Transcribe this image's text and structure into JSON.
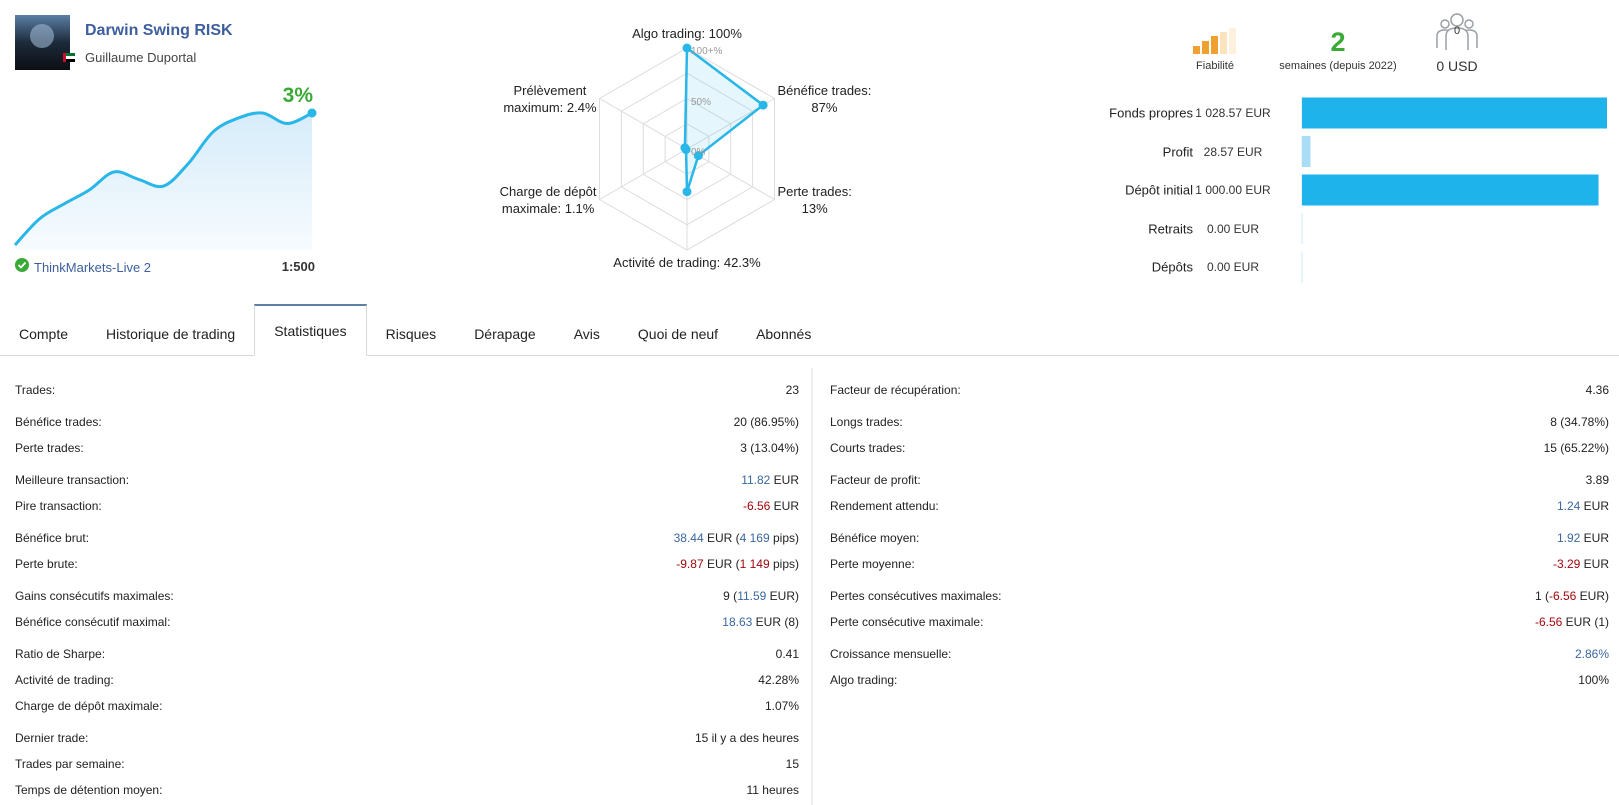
{
  "header": {
    "name": "Darwin Swing RISK",
    "author": "Guillaume Duportal"
  },
  "growth": {
    "label": "3%",
    "color": "#29b6e8",
    "label_color": "#3aa935",
    "values": [
      0,
      0.6,
      0.94,
      1.25,
      1.66,
      1.49,
      1.34,
      1.85,
      2.57,
      2.88,
      3,
      2.76,
      3
    ]
  },
  "broker": "ThinkMarkets-Live 2",
  "leverage": "1:500",
  "radar": {
    "type": "radar",
    "color": "#29b6e8",
    "rlim": [
      0,
      100
    ],
    "grid": [
      25,
      50,
      75,
      100
    ],
    "ticks": [
      {
        "value": 100,
        "label": "100+%"
      },
      {
        "value": 50,
        "label": "50%"
      },
      {
        "value": 0,
        "label": "0%"
      }
    ],
    "axes": [
      {
        "label": [
          "Algo trading: 100%"
        ],
        "value": 100
      },
      {
        "label": [
          "Bénéfice trades:",
          "87%"
        ],
        "value": 87
      },
      {
        "label": [
          "Perte trades:",
          "13%"
        ],
        "value": 13
      },
      {
        "label": [
          "Activité de trading: 42.3%"
        ],
        "value": 42.3
      },
      {
        "label": [
          "Charge de dépôt",
          "maximale: 1.1%"
        ],
        "value": 1.1
      },
      {
        "label": [
          "Prélèvement",
          "maximum: 2.4%"
        ],
        "value": 2.4
      }
    ]
  },
  "summary": {
    "reliability": "Fiabilité",
    "weeks": "2",
    "weeks_label": "semaines (depuis 2022)",
    "subscribers": "0",
    "subscription": "0 USD"
  },
  "balance": {
    "type": "bar",
    "color": "#1eb3eb",
    "rows": [
      {
        "label": "Fonds propres",
        "value": 1028.57,
        "value_label": "1 028.57 EUR"
      },
      {
        "label": "Profit",
        "value": 28.57,
        "value_label": "28.57 EUR",
        "color": "#a9dcf5"
      },
      {
        "label": "Dépôt initial",
        "value": 1000,
        "value_label": "1 000.00 EUR"
      },
      {
        "label": "Retraits",
        "value": 0,
        "value_label": "0.00 EUR"
      },
      {
        "label": "Dépôts",
        "value": 0,
        "value_label": "0.00 EUR"
      }
    ]
  },
  "tabs": {
    "items": [
      "Compte",
      "Historique de trading",
      "Statistiques",
      "Risques",
      "Dérapage",
      "Avis",
      "Quoi de neuf",
      "Abonnés"
    ],
    "active": 2
  },
  "stats": {
    "colors": {
      "positive": "#3a67a3",
      "negative": "#a0070b"
    },
    "columns": [
      [
        [
          {
            "label": "Trades:",
            "value": [
              "23"
            ]
          }
        ],
        [
          {
            "label": "Bénéfice trades:",
            "value": [
              "20 (86.95%)"
            ]
          },
          {
            "label": "Perte trades:",
            "value": [
              "3 (13.04%)"
            ]
          }
        ],
        [
          {
            "label": "Meilleure transaction:",
            "value": [
              {
                "text": "11.82",
                "tone": "positive"
              },
              " EUR"
            ]
          },
          {
            "label": "Pire transaction:",
            "value": [
              {
                "text": "-6.56",
                "tone": "negative"
              },
              " EUR"
            ]
          }
        ],
        [
          {
            "label": "Bénéfice brut:",
            "value": [
              {
                "text": "38.44",
                "tone": "positive"
              },
              " EUR (",
              {
                "text": "4 169",
                "tone": "positive"
              },
              " pips)"
            ]
          },
          {
            "label": "Perte brute:",
            "value": [
              {
                "text": "-9.87",
                "tone": "negative"
              },
              " EUR (",
              {
                "text": "1 149",
                "tone": "negative"
              },
              " pips)"
            ]
          }
        ],
        [
          {
            "label": "Gains consécutifs maximales:",
            "value": [
              "9 (",
              {
                "text": "11.59",
                "tone": "positive"
              },
              " EUR)"
            ]
          },
          {
            "label": "Bénéfice consécutif maximal:",
            "value": [
              {
                "text": "18.63",
                "tone": "positive"
              },
              " EUR (8)"
            ]
          }
        ],
        [
          {
            "label": "Ratio de Sharpe:",
            "value": [
              "0.41"
            ]
          },
          {
            "label": "Activité de trading:",
            "value": [
              "42.28%"
            ]
          },
          {
            "label": "Charge de dépôt maximale:",
            "value": [
              "1.07%"
            ]
          }
        ],
        [
          {
            "label": "Dernier trade:",
            "value": [
              "15 il y a des heures"
            ]
          },
          {
            "label": "Trades par semaine:",
            "value": [
              "15"
            ]
          },
          {
            "label": "Temps de détention moyen:",
            "value": [
              "11 heures"
            ]
          }
        ]
      ],
      [
        [
          {
            "label": "Facteur de récupération:",
            "value": [
              "4.36"
            ]
          }
        ],
        [
          {
            "label": "Longs trades:",
            "value": [
              "8 (34.78%)"
            ]
          },
          {
            "label": "Courts trades:",
            "value": [
              "15 (65.22%)"
            ]
          }
        ],
        [
          {
            "label": "Facteur de profit:",
            "value": [
              "3.89"
            ]
          },
          {
            "label": "Rendement attendu:",
            "value": [
              {
                "text": "1.24",
                "tone": "positive"
              },
              " EUR"
            ]
          }
        ],
        [
          {
            "label": "Bénéfice moyen:",
            "value": [
              {
                "text": "1.92",
                "tone": "positive"
              },
              " EUR"
            ]
          },
          {
            "label": "Perte moyenne:",
            "value": [
              {
                "text": "-3.29",
                "tone": "negative"
              },
              " EUR"
            ]
          }
        ],
        [
          {
            "label": "Pertes consécutives maximales:",
            "value": [
              "1 (",
              {
                "text": "-6.56",
                "tone": "negative"
              },
              " EUR)"
            ]
          },
          {
            "label": "Perte consécutive maximale:",
            "value": [
              {
                "text": "-6.56",
                "tone": "negative"
              },
              " EUR (1)"
            ]
          }
        ],
        [
          {
            "label": "Croissance mensuelle:",
            "value": [
              {
                "text": "2.86%",
                "tone": "positive"
              }
            ]
          },
          {
            "label": "Algo trading:",
            "value": [
              "100%"
            ]
          }
        ]
      ]
    ]
  }
}
